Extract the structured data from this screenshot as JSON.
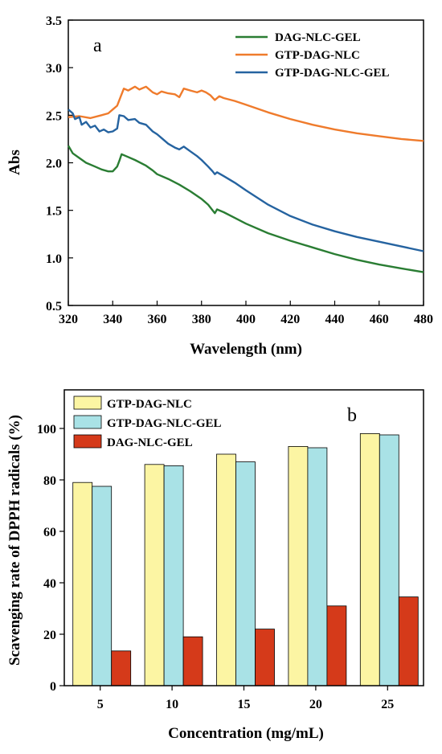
{
  "chart_data": [
    {
      "type": "line",
      "panel_label": "a",
      "xlabel": "Wavelength (nm)",
      "ylabel": "Abs",
      "xlim": [
        320,
        480
      ],
      "ylim": [
        0.5,
        3.5
      ],
      "xticks": [
        "320",
        "340",
        "360",
        "380",
        "400",
        "420",
        "440",
        "460",
        "480"
      ],
      "yticks": [
        "0.5",
        "1.0",
        "1.5",
        "2.0",
        "2.5",
        "3.0",
        "3.5"
      ],
      "legend_position": "top-right",
      "series": [
        {
          "name": "DAG-NLC-GEL",
          "color": "#2a7d33",
          "points": [
            [
              320,
              2.18
            ],
            [
              322,
              2.1
            ],
            [
              325,
              2.05
            ],
            [
              328,
              2.0
            ],
            [
              332,
              1.96
            ],
            [
              335,
              1.93
            ],
            [
              338,
              1.91
            ],
            [
              340,
              1.91
            ],
            [
              342,
              1.96
            ],
            [
              343,
              2.02
            ],
            [
              344,
              2.09
            ],
            [
              346,
              2.07
            ],
            [
              350,
              2.03
            ],
            [
              355,
              1.97
            ],
            [
              358,
              1.92
            ],
            [
              360,
              1.88
            ],
            [
              365,
              1.83
            ],
            [
              370,
              1.77
            ],
            [
              375,
              1.7
            ],
            [
              380,
              1.62
            ],
            [
              383,
              1.56
            ],
            [
              385,
              1.5
            ],
            [
              386,
              1.47
            ],
            [
              387,
              1.51
            ],
            [
              390,
              1.48
            ],
            [
              395,
              1.42
            ],
            [
              400,
              1.36
            ],
            [
              410,
              1.26
            ],
            [
              420,
              1.18
            ],
            [
              430,
              1.11
            ],
            [
              440,
              1.04
            ],
            [
              450,
              0.98
            ],
            [
              460,
              0.93
            ],
            [
              470,
              0.89
            ],
            [
              480,
              0.85
            ]
          ]
        },
        {
          "name": "GTP-DAG-NLC",
          "color": "#ef7b2c",
          "points": [
            [
              320,
              2.48
            ],
            [
              325,
              2.49
            ],
            [
              330,
              2.47
            ],
            [
              335,
              2.5
            ],
            [
              338,
              2.52
            ],
            [
              340,
              2.56
            ],
            [
              342,
              2.6
            ],
            [
              344,
              2.72
            ],
            [
              345,
              2.78
            ],
            [
              347,
              2.76
            ],
            [
              350,
              2.8
            ],
            [
              352,
              2.77
            ],
            [
              355,
              2.8
            ],
            [
              358,
              2.74
            ],
            [
              360,
              2.72
            ],
            [
              362,
              2.75
            ],
            [
              365,
              2.73
            ],
            [
              368,
              2.72
            ],
            [
              370,
              2.69
            ],
            [
              372,
              2.78
            ],
            [
              375,
              2.76
            ],
            [
              378,
              2.74
            ],
            [
              380,
              2.76
            ],
            [
              382,
              2.74
            ],
            [
              384,
              2.71
            ],
            [
              386,
              2.66
            ],
            [
              388,
              2.7
            ],
            [
              390,
              2.68
            ],
            [
              395,
              2.65
            ],
            [
              400,
              2.61
            ],
            [
              410,
              2.53
            ],
            [
              420,
              2.46
            ],
            [
              430,
              2.4
            ],
            [
              440,
              2.35
            ],
            [
              450,
              2.31
            ],
            [
              460,
              2.28
            ],
            [
              470,
              2.25
            ],
            [
              480,
              2.23
            ]
          ]
        },
        {
          "name": "GTP-DAG-NLC-GEL",
          "color": "#2563a0",
          "points": [
            [
              320,
              2.56
            ],
            [
              322,
              2.52
            ],
            [
              323,
              2.46
            ],
            [
              325,
              2.48
            ],
            [
              326,
              2.4
            ],
            [
              328,
              2.43
            ],
            [
              330,
              2.37
            ],
            [
              332,
              2.39
            ],
            [
              334,
              2.33
            ],
            [
              336,
              2.35
            ],
            [
              338,
              2.32
            ],
            [
              340,
              2.33
            ],
            [
              342,
              2.36
            ],
            [
              343,
              2.5
            ],
            [
              345,
              2.49
            ],
            [
              347,
              2.45
            ],
            [
              350,
              2.46
            ],
            [
              352,
              2.42
            ],
            [
              355,
              2.4
            ],
            [
              358,
              2.33
            ],
            [
              360,
              2.3
            ],
            [
              362,
              2.26
            ],
            [
              365,
              2.2
            ],
            [
              368,
              2.16
            ],
            [
              370,
              2.14
            ],
            [
              372,
              2.17
            ],
            [
              375,
              2.12
            ],
            [
              378,
              2.07
            ],
            [
              380,
              2.03
            ],
            [
              383,
              1.96
            ],
            [
              385,
              1.91
            ],
            [
              386,
              1.88
            ],
            [
              387,
              1.9
            ],
            [
              390,
              1.86
            ],
            [
              395,
              1.79
            ],
            [
              400,
              1.71
            ],
            [
              410,
              1.56
            ],
            [
              420,
              1.44
            ],
            [
              430,
              1.35
            ],
            [
              440,
              1.28
            ],
            [
              450,
              1.22
            ],
            [
              460,
              1.17
            ],
            [
              470,
              1.12
            ],
            [
              480,
              1.07
            ]
          ]
        }
      ]
    },
    {
      "type": "bar",
      "panel_label": "b",
      "xlabel": "Concentration (mg/mL)",
      "ylabel": "Scavenging rate of DPPH radicals (%)",
      "categories": [
        "5",
        "10",
        "15",
        "20",
        "25"
      ],
      "ylim": [
        0,
        115
      ],
      "yticks": [
        "0",
        "20",
        "40",
        "60",
        "80",
        "100"
      ],
      "legend_position": "top-left",
      "series": [
        {
          "name": "GTP-DAG-NLC",
          "color": "#fcf5a3",
          "values": [
            79,
            86,
            90,
            93,
            98
          ]
        },
        {
          "name": "GTP-DAG-NLC-GEL",
          "color": "#a9e2e6",
          "values": [
            77.5,
            85.5,
            87,
            92.5,
            97.5
          ]
        },
        {
          "name": "DAG-NLC-GEL",
          "color": "#d53a1a",
          "values": [
            13.5,
            19,
            22,
            31,
            34.5
          ]
        }
      ]
    }
  ]
}
